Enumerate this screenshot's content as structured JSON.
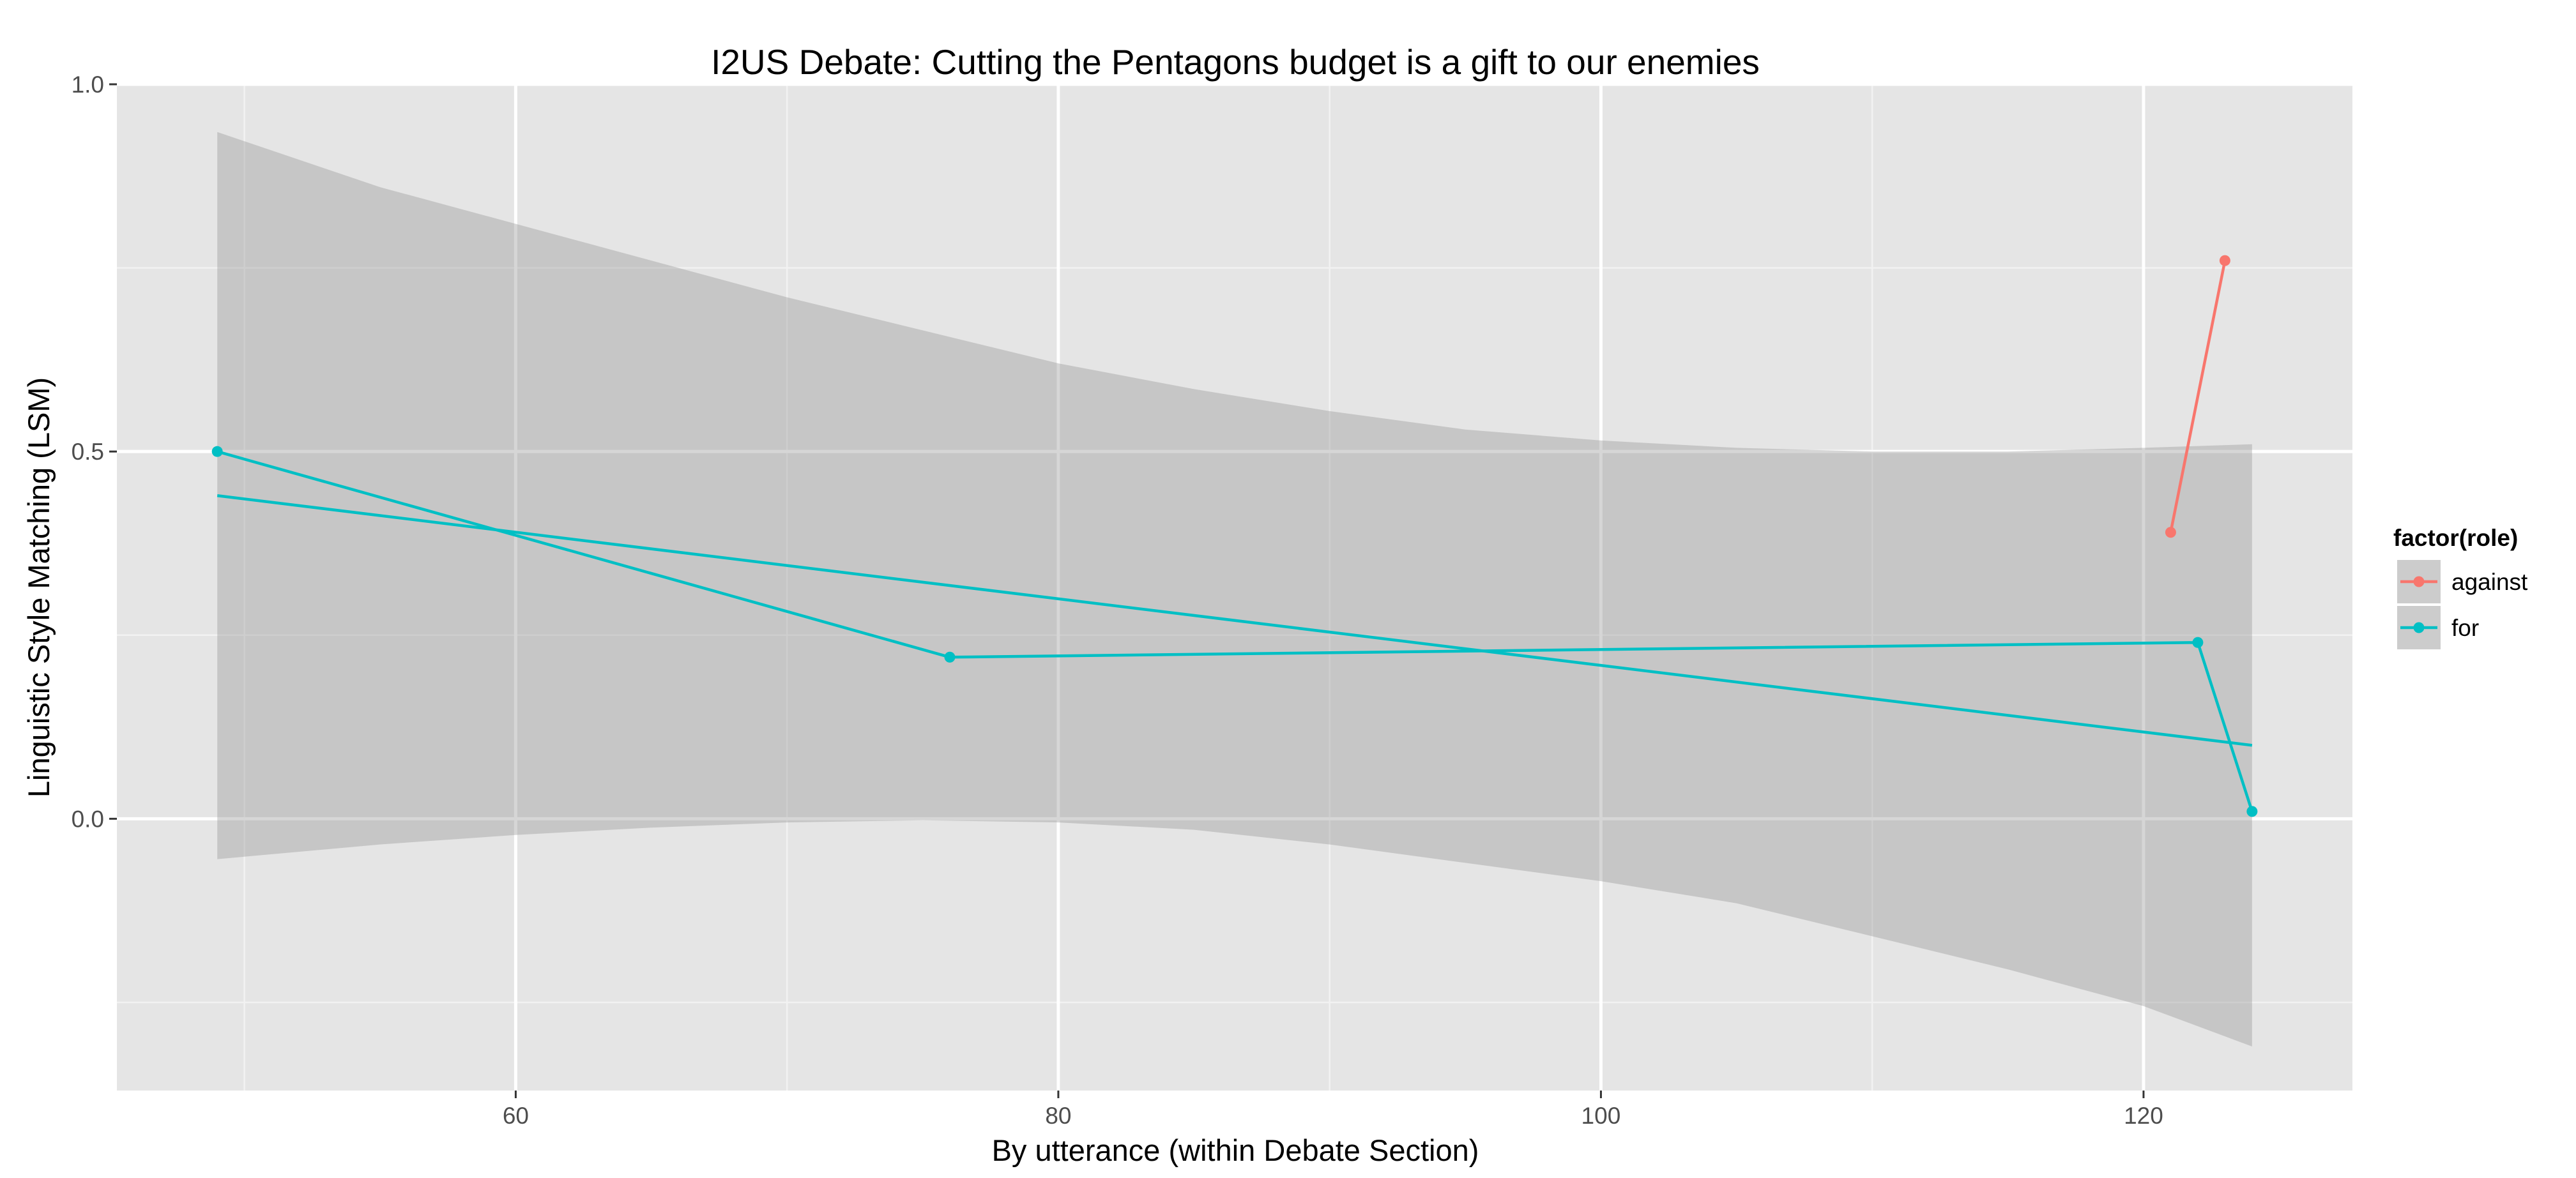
{
  "chart_data": {
    "type": "line",
    "title": "I2US Debate: Cutting the Pentagons budget is a gift to our enemies",
    "xlabel": "By utterance (within Debate Section)",
    "ylabel": "Linguistic Style Matching (LSM)",
    "xlim": [
      45.3,
      127.7
    ],
    "ylim": [
      -0.37,
      1.0
    ],
    "x_ticks": [
      60,
      80,
      100,
      120
    ],
    "x_minor_ticks": [
      50,
      70,
      90,
      110
    ],
    "y_ticks": [
      0.0,
      0.5,
      1.0
    ],
    "y_minor_ticks": [
      -0.25,
      0.25,
      0.75
    ],
    "x_tick_labels": [
      "60",
      "80",
      "100",
      "120"
    ],
    "y_tick_labels": [
      "0.0",
      "0.5",
      "1.0"
    ],
    "grid": true,
    "legend": {
      "title": "factor(role)",
      "position": "right",
      "entries": [
        "against",
        "for"
      ]
    },
    "series": [
      {
        "name": "against",
        "color": "#F8766D",
        "points": [
          {
            "x": 121,
            "y": 0.39
          },
          {
            "x": 123,
            "y": 0.76
          }
        ]
      },
      {
        "name": "for",
        "color": "#00BFC4",
        "points": [
          {
            "x": 49,
            "y": 0.5
          },
          {
            "x": 76,
            "y": 0.22
          },
          {
            "x": 122,
            "y": 0.24
          },
          {
            "x": 124,
            "y": 0.01
          }
        ]
      }
    ],
    "trend": {
      "series": "for",
      "method": "linear",
      "color": "#00BFC4",
      "x": [
        49,
        124
      ],
      "y": [
        0.44,
        0.1
      ],
      "band_color": "#999999",
      "band": [
        {
          "x": 49,
          "lower": -0.055,
          "upper": 0.935
        },
        {
          "x": 55,
          "lower": -0.035,
          "upper": 0.86
        },
        {
          "x": 60,
          "lower": -0.022,
          "upper": 0.81
        },
        {
          "x": 65,
          "lower": -0.012,
          "upper": 0.76
        },
        {
          "x": 70,
          "lower": -0.005,
          "upper": 0.71
        },
        {
          "x": 75,
          "lower": -0.002,
          "upper": 0.665
        },
        {
          "x": 80,
          "lower": -0.005,
          "upper": 0.62
        },
        {
          "x": 85,
          "lower": -0.015,
          "upper": 0.585
        },
        {
          "x": 90,
          "lower": -0.035,
          "upper": 0.555
        },
        {
          "x": 95,
          "lower": -0.06,
          "upper": 0.53
        },
        {
          "x": 100,
          "lower": -0.085,
          "upper": 0.515
        },
        {
          "x": 105,
          "lower": -0.115,
          "upper": 0.505
        },
        {
          "x": 110,
          "lower": -0.16,
          "upper": 0.5
        },
        {
          "x": 115,
          "lower": -0.205,
          "upper": 0.5
        },
        {
          "x": 120,
          "lower": -0.255,
          "upper": 0.505
        },
        {
          "x": 124,
          "lower": -0.31,
          "upper": 0.51
        }
      ]
    }
  }
}
